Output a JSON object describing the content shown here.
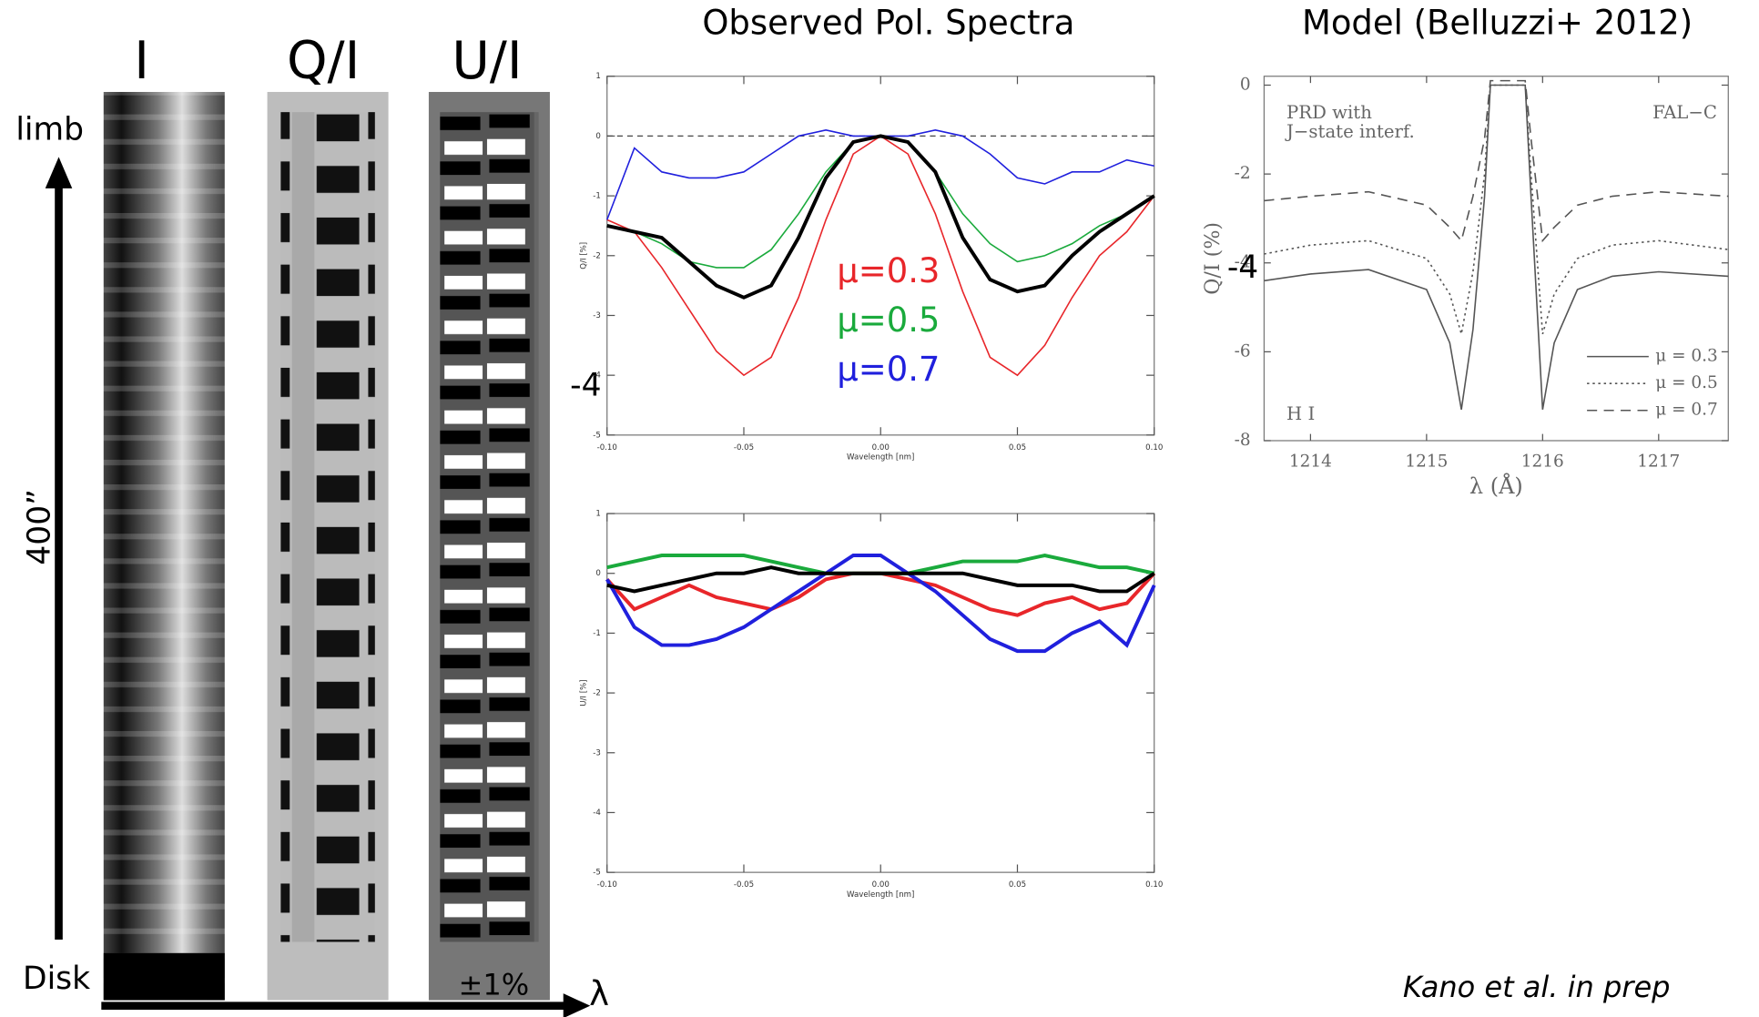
{
  "labels": {
    "image_titles": [
      "I",
      "Q/I",
      "U/I"
    ],
    "limb": "limb",
    "disk": "Disk",
    "height": "400”",
    "scale": "±1%",
    "lambda": "λ",
    "credit": "Kano et al. in prep",
    "overlays": [
      "-4",
      "-4"
    ]
  },
  "chart_data": [
    {
      "type": "line",
      "title": "Observed Pol. Spectra",
      "xlabel": "Wavelength [nm]",
      "ylabel": "Q/I [%]",
      "x": [
        -0.1,
        -0.09,
        -0.08,
        -0.07,
        -0.06,
        -0.05,
        -0.04,
        -0.03,
        -0.02,
        -0.01,
        0,
        0.01,
        0.02,
        0.03,
        0.04,
        0.05,
        0.06,
        0.07,
        0.08,
        0.09,
        0.1
      ],
      "xlim": [
        -0.1,
        0.1
      ],
      "xticks": [
        {
          "value": -0.1,
          "label": "-0.10"
        },
        -0.05,
        {
          "value": 0,
          "label": "0.00"
        },
        0.05,
        {
          "value": 0.1,
          "label": "0.10"
        }
      ],
      "ylim": [
        -5,
        1
      ],
      "yticks": [
        -5,
        -4,
        -3,
        -2,
        -1,
        0,
        1
      ],
      "reference_line": 0,
      "series": [
        {
          "name": "μ=0.3",
          "color": "#e8262a",
          "values": [
            -1.4,
            -1.6,
            -2.2,
            -2.9,
            -3.6,
            -4.0,
            -3.7,
            -2.7,
            -1.4,
            -0.3,
            0.0,
            -0.3,
            -1.3,
            -2.6,
            -3.7,
            -4.0,
            -3.5,
            -2.7,
            -2.0,
            -1.6,
            -1.0
          ]
        },
        {
          "name": "μ=0.5",
          "color": "#1aaa3c",
          "values": [
            -1.5,
            -1.6,
            -1.8,
            -2.1,
            -2.2,
            -2.2,
            -1.9,
            -1.3,
            -0.6,
            -0.1,
            0.0,
            -0.1,
            -0.6,
            -1.3,
            -1.8,
            -2.1,
            -2.0,
            -1.8,
            -1.5,
            -1.3,
            -1.0
          ]
        },
        {
          "name": "μ=0.7",
          "color": "#2020dd",
          "values": [
            -1.4,
            -0.2,
            -0.6,
            -0.7,
            -0.7,
            -0.6,
            -0.3,
            0.0,
            0.1,
            0.0,
            0.0,
            0.0,
            0.1,
            0.0,
            -0.3,
            -0.7,
            -0.8,
            -0.6,
            -0.6,
            -0.4,
            -0.5
          ]
        },
        {
          "color": "#000000",
          "values": [
            -1.5,
            -1.6,
            -1.7,
            -2.1,
            -2.5,
            -2.7,
            -2.5,
            -1.7,
            -0.7,
            -0.1,
            0.0,
            -0.1,
            -0.6,
            -1.7,
            -2.4,
            -2.6,
            -2.5,
            -2.0,
            -1.6,
            -1.3,
            -1.0
          ]
        }
      ]
    },
    {
      "type": "line",
      "xlabel": "Wavelength [nm]",
      "ylabel": "U/I [%]",
      "x": [
        -0.1,
        -0.09,
        -0.08,
        -0.07,
        -0.06,
        -0.05,
        -0.04,
        -0.03,
        -0.02,
        -0.01,
        0,
        0.01,
        0.02,
        0.03,
        0.04,
        0.05,
        0.06,
        0.07,
        0.08,
        0.09,
        0.1
      ],
      "xlim": [
        -0.1,
        0.1
      ],
      "xticks": [
        {
          "value": -0.1,
          "label": "-0.10"
        },
        -0.05,
        {
          "value": 0,
          "label": "0.00"
        },
        0.05,
        {
          "value": 0.1,
          "label": "0.10"
        }
      ],
      "ylim": [
        -5,
        1
      ],
      "yticks": [
        -5,
        -4,
        -3,
        -2,
        -1,
        0,
        1
      ],
      "series": [
        {
          "color": "#e8262a",
          "values": [
            -0.1,
            -0.6,
            -0.4,
            -0.2,
            -0.4,
            -0.5,
            -0.6,
            -0.4,
            -0.1,
            0.0,
            0.0,
            -0.1,
            -0.2,
            -0.4,
            -0.6,
            -0.7,
            -0.5,
            -0.4,
            -0.6,
            -0.5,
            0.0
          ]
        },
        {
          "color": "#1aaa3c",
          "values": [
            0.1,
            0.2,
            0.3,
            0.3,
            0.3,
            0.3,
            0.2,
            0.1,
            0.0,
            0.0,
            0.0,
            0.0,
            0.1,
            0.2,
            0.2,
            0.2,
            0.3,
            0.2,
            0.1,
            0.1,
            0.0
          ]
        },
        {
          "color": "#2020dd",
          "values": [
            -0.1,
            -0.9,
            -1.2,
            -1.2,
            -1.1,
            -0.9,
            -0.6,
            -0.3,
            0.0,
            0.3,
            0.3,
            0.0,
            -0.3,
            -0.7,
            -1.1,
            -1.3,
            -1.3,
            -1.0,
            -0.8,
            -1.2,
            -0.2
          ]
        },
        {
          "color": "#000000",
          "values": [
            -0.2,
            -0.3,
            -0.2,
            -0.1,
            0.0,
            0.0,
            0.1,
            0.0,
            0.0,
            0.0,
            0.0,
            0.0,
            0.0,
            0.0,
            -0.1,
            -0.2,
            -0.2,
            -0.2,
            -0.3,
            -0.3,
            0.0
          ]
        }
      ]
    },
    {
      "type": "line",
      "title": "Model (Belluzzi+ 2012)",
      "xlabel": "λ (Å)",
      "ylabel": "Q/I (%)",
      "annotations": [
        "PRD with",
        "J−state interf.",
        "FAL−C",
        "H I"
      ],
      "x": [
        1213.6,
        1214,
        1214.5,
        1215,
        1215.2,
        1215.3,
        1215.4,
        1215.5,
        1215.55,
        1215.6,
        1215.8,
        1215.85,
        1215.9,
        1216,
        1216.1,
        1216.3,
        1216.6,
        1217,
        1217.6
      ],
      "xlim": [
        1213.6,
        1217.6
      ],
      "xticks": [
        1214,
        1215,
        1216,
        1217
      ],
      "ylim": [
        -8,
        0.2
      ],
      "yticks": [
        -8,
        -6,
        -4,
        -2,
        0
      ],
      "series": [
        {
          "name": "μ = 0.3",
          "color": "#555555",
          "dash": "solid",
          "values": [
            -4.4,
            -4.25,
            -4.15,
            -4.6,
            -5.8,
            -7.3,
            -5.5,
            -2.5,
            0.0,
            0.0,
            0.0,
            0.0,
            -2.5,
            -7.3,
            -5.8,
            -4.6,
            -4.3,
            -4.2,
            -4.3
          ]
        },
        {
          "name": "μ = 0.5",
          "color": "#555555",
          "dash": "dotted",
          "values": [
            -3.8,
            -3.6,
            -3.5,
            -3.9,
            -4.7,
            -5.6,
            -4.2,
            -2.0,
            0.0,
            0.0,
            0.0,
            0.0,
            -2.0,
            -5.6,
            -4.7,
            -3.9,
            -3.6,
            -3.5,
            -3.7
          ]
        },
        {
          "name": "μ = 0.7",
          "color": "#555555",
          "dash": "dashed",
          "values": [
            -2.6,
            -2.5,
            -2.4,
            -2.7,
            -3.2,
            -3.5,
            -2.5,
            -1.2,
            0.1,
            0.1,
            0.1,
            0.1,
            -1.2,
            -3.5,
            -3.2,
            -2.7,
            -2.5,
            -2.4,
            -2.5
          ]
        }
      ]
    }
  ]
}
